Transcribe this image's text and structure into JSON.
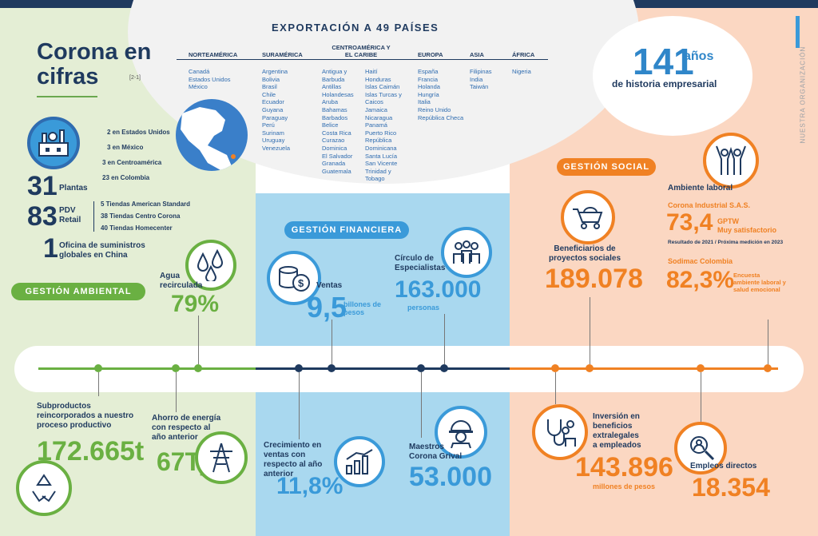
{
  "header": {
    "title": "Corona en cifras",
    "title_ref": "[2-1]",
    "side_text": "NUESTRA ORGANIZACIÓN"
  },
  "plantas": {
    "count": "31",
    "label": "Plantas",
    "list": [
      "2 en Estados Unidos",
      "3 en México",
      "3 en Centroamérica",
      "23 en Colombia"
    ]
  },
  "pdv": {
    "count": "83",
    "label_1": "PDV",
    "label_2": "Retail",
    "list": [
      "5 Tiendas American Standard",
      "38 Tiendas Centro Corona",
      "40 Tiendas Homecenter"
    ]
  },
  "oficina": {
    "count": "1",
    "label": "Oficina de suministros globales en China"
  },
  "export": {
    "title": "EXPORTACIÓN A 49 PAÍSES",
    "columns": [
      {
        "head": "NORTEAMÉRICA",
        "items": [
          "Canadá",
          "Estados Unidos",
          "México"
        ]
      },
      {
        "head": "SURAMÉRICA",
        "items": [
          "Argentina",
          "Bolivia",
          "Brasil",
          "Chile",
          "Ecuador",
          "Guyana",
          "Paraguay",
          "Perú",
          "Surinam",
          "Uruguay",
          "Venezuela"
        ]
      },
      {
        "head": "CENTROAMÉRICA Y EL CARIBE",
        "items": [
          "Antigua y Barbuda",
          "Antillas Holandesas",
          "Aruba",
          "Bahamas",
          "Barbados",
          "Belice",
          "Costa Rica",
          "Curazao",
          "Dominica",
          "El Salvador",
          "Granada",
          "Guatemala"
        ]
      },
      {
        "head": "",
        "items": [
          "Haití",
          "Honduras",
          "Islas Caimán",
          "Islas Turcas y Caicos",
          "Jamaica",
          "Nicaragua",
          "Panamá",
          "Puerto Rico",
          "República Dominicana",
          "Santa Lucía",
          "San Vicente",
          "Trinidad y Tobago"
        ]
      },
      {
        "head": "EUROPA",
        "items": [
          "España",
          "Francia",
          "Holanda",
          "Hungría",
          "Italia",
          "Reino Unido",
          "República Checa"
        ]
      },
      {
        "head": "ASIA",
        "items": [
          "Filipinas",
          "India",
          "Taiwán"
        ]
      },
      {
        "head": "ÁFRICA",
        "items": [
          "Nigeria"
        ]
      }
    ]
  },
  "historia": {
    "value": "141",
    "unit": "años",
    "label": "de historia empresarial"
  },
  "sections": {
    "ambiental": "GESTIÓN AMBIENTAL",
    "financiera": "GESTIÓN FINANCIERA",
    "social": "GESTIÓN SOCIAL"
  },
  "agua": {
    "label": "Agua recirculada",
    "value": "79%"
  },
  "subproductos": {
    "label": "Subproductos reincorporados a nuestro proceso productivo",
    "value": "172.665t"
  },
  "energia": {
    "label": "Ahorro de energía con respecto al año anterior",
    "value": "67Tj"
  },
  "ventas": {
    "label": "Ventas",
    "value": "9,5",
    "unit": "billones de pesos"
  },
  "especialistas": {
    "label": "Círculo de Especialistas",
    "value": "163.000",
    "unit": "personas"
  },
  "crecimiento": {
    "label": "Crecimiento en ventas con respecto al año anterior",
    "value": "11,8%"
  },
  "maestros": {
    "label": "Maestros Corona Grival",
    "value": "53.000"
  },
  "beneficiarios": {
    "label": "Beneficiarios de proyectos sociales",
    "value": "189.078"
  },
  "ambiente": {
    "label": "Ambiente laboral",
    "company1": "Corona Industrial S.A.S.",
    "value1": "73,4",
    "gptw": "GPTW",
    "gptw_sub": "Muy satisfactorio",
    "note": "Resultado de 2021 / Próxima medición en 2023",
    "company2": "Sodimac Colombia",
    "value2": "82,3%",
    "encuesta": "Encuesta ambiente laboral y salud emocional"
  },
  "inversion": {
    "label": "Inversión en beneficios extralegales a empleados",
    "value": "143.896",
    "unit": "millones de pesos"
  },
  "empleos": {
    "label": "Empleos directos",
    "value": "18.354"
  }
}
